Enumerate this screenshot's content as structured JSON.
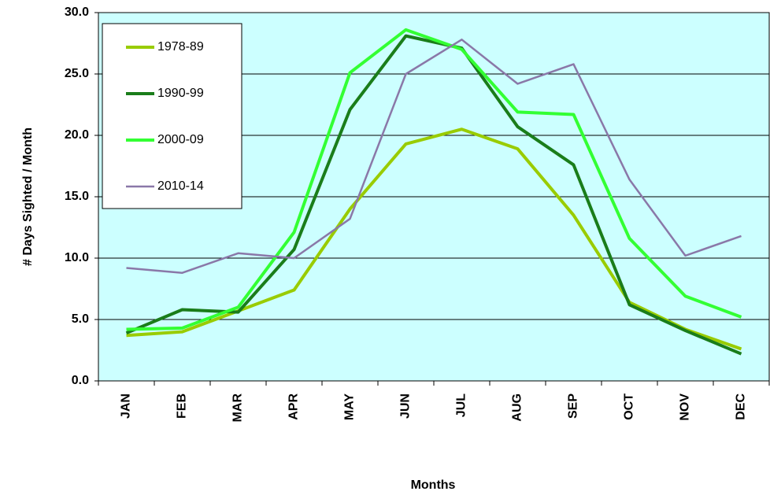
{
  "chart_data": {
    "type": "line",
    "x_label": "Months",
    "y_label": "# Days Sighted / Month",
    "categories": [
      "JAN",
      "FEB",
      "MAR",
      "APR",
      "MAY",
      "JUN",
      "JUL",
      "AUG",
      "SEP",
      "OCT",
      "NOV",
      "DEC"
    ],
    "series": [
      {
        "name": "1978-89",
        "color": "#99cc00",
        "width": 4,
        "values": [
          3.7,
          4.0,
          5.7,
          7.4,
          14.0,
          19.3,
          20.5,
          18.9,
          13.5,
          6.4,
          4.2,
          2.6
        ]
      },
      {
        "name": "1990-99",
        "color": "#1a7d1a",
        "width": 4,
        "values": [
          3.9,
          5.8,
          5.6,
          10.7,
          22.1,
          28.1,
          27.1,
          20.7,
          17.6,
          6.2,
          4.1,
          2.2
        ]
      },
      {
        "name": "2000-09",
        "color": "#33ff33",
        "width": 4,
        "values": [
          4.2,
          4.3,
          6.0,
          12.1,
          25.1,
          28.6,
          27.0,
          21.9,
          21.7,
          11.6,
          6.9,
          5.2
        ]
      },
      {
        "name": "2010-14",
        "color": "#8a78a8",
        "width": 2.5,
        "values": [
          9.2,
          8.8,
          10.4,
          10.0,
          13.2,
          25.0,
          27.8,
          24.2,
          25.8,
          16.4,
          10.2,
          11.8
        ]
      }
    ],
    "ylim": [
      0,
      30
    ],
    "yticks": [
      {
        "value": 0,
        "label": "0.0"
      },
      {
        "value": 5,
        "label": "5.0"
      },
      {
        "value": 10,
        "label": "10.0"
      },
      {
        "value": 15,
        "label": "15.0"
      },
      {
        "value": 20,
        "label": "20.0"
      },
      {
        "value": 25,
        "label": "25.0"
      },
      {
        "value": 30,
        "label": "30.0"
      }
    ],
    "grid": true,
    "legend": "upper left",
    "background": "#ccffff"
  }
}
